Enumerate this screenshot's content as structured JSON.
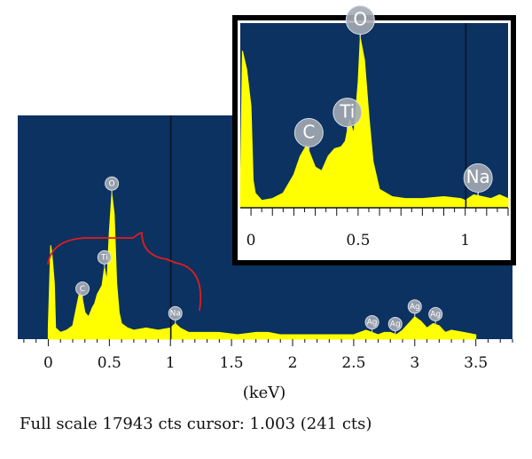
{
  "chart_data": {
    "type": "area",
    "xlabel": "(keV)",
    "xlim": [
      -0.25,
      3.8
    ],
    "ylim": [
      0,
      100
    ],
    "xticks": [
      "0",
      "0.5",
      "1",
      "1.5",
      "2",
      "2.5",
      "3",
      "3.5"
    ],
    "cursor_kev": 1.003,
    "background": "#0b3261",
    "spectrum_color": "#ffff00",
    "bracket_color": "#e11d1d",
    "spectrum": {
      "x": [
        0.0,
        0.02,
        0.03,
        0.05,
        0.06,
        0.1,
        0.15,
        0.2,
        0.23,
        0.26,
        0.28,
        0.3,
        0.33,
        0.36,
        0.38,
        0.4,
        0.44,
        0.46,
        0.48,
        0.5,
        0.52,
        0.54,
        0.56,
        0.58,
        0.6,
        0.65,
        0.7,
        0.8,
        0.9,
        1.0,
        1.04,
        1.08,
        1.15,
        1.25,
        1.4,
        1.55,
        1.7,
        1.8,
        1.9,
        2.1,
        2.3,
        2.5,
        2.6,
        2.65,
        2.7,
        2.75,
        2.8,
        2.85,
        2.9,
        2.95,
        3.0,
        3.05,
        3.1,
        3.15,
        3.2,
        3.25,
        3.3,
        3.4,
        3.5
      ],
      "y": [
        5,
        42,
        38,
        25,
        5,
        3,
        4,
        6,
        14,
        22,
        18,
        12,
        10,
        14,
        16,
        20,
        24,
        32,
        26,
        48,
        65,
        56,
        25,
        12,
        7,
        5,
        4,
        5,
        4,
        5,
        7,
        5,
        3,
        3,
        3,
        2,
        3,
        3,
        2,
        2,
        2,
        2,
        4,
        3,
        2,
        3,
        3,
        2,
        4,
        7,
        10,
        8,
        5,
        7,
        6,
        3,
        4,
        3,
        2
      ]
    },
    "peak_labels": [
      {
        "text": "C",
        "x": 0.28
      },
      {
        "text": "Ti",
        "x": 0.46
      },
      {
        "text": "O",
        "x": 0.52
      },
      {
        "text": "Na",
        "x": 1.04
      },
      {
        "text": "Ag",
        "x": 2.65
      },
      {
        "text": "Ag",
        "x": 2.84
      },
      {
        "text": "Ag",
        "x": 3.0
      },
      {
        "text": "Ag",
        "x": 3.17
      }
    ],
    "inset": {
      "xlim": [
        -0.05,
        1.2
      ],
      "ylim": [
        0,
        100
      ],
      "xticks": [
        "0",
        "0.5",
        "1"
      ],
      "spectrum": {
        "x": [
          -0.05,
          -0.04,
          -0.02,
          0.0,
          0.01,
          0.02,
          0.05,
          0.1,
          0.15,
          0.2,
          0.23,
          0.26,
          0.28,
          0.3,
          0.33,
          0.36,
          0.39,
          0.42,
          0.44,
          0.46,
          0.48,
          0.5,
          0.51,
          0.53,
          0.55,
          0.57,
          0.6,
          0.66,
          0.72,
          0.8,
          0.9,
          0.98,
          1.0,
          1.04,
          1.08,
          1.12,
          1.16,
          1.2
        ],
        "y": [
          3,
          85,
          75,
          55,
          15,
          8,
          4,
          5,
          8,
          18,
          28,
          34,
          28,
          22,
          20,
          28,
          32,
          33,
          36,
          48,
          40,
          68,
          92,
          80,
          50,
          25,
          10,
          6,
          5,
          5,
          6,
          5,
          4,
          7,
          6,
          5,
          7,
          5
        ]
      },
      "peak_labels": [
        {
          "text": "C",
          "x": 0.27
        },
        {
          "text": "Ti",
          "x": 0.45
        },
        {
          "text": "O",
          "x": 0.51
        },
        {
          "text": "Na",
          "x": 1.06
        }
      ]
    }
  },
  "footer": {
    "text": "Full scale 17943 cts cursor: 1.003 (241 cts)"
  }
}
